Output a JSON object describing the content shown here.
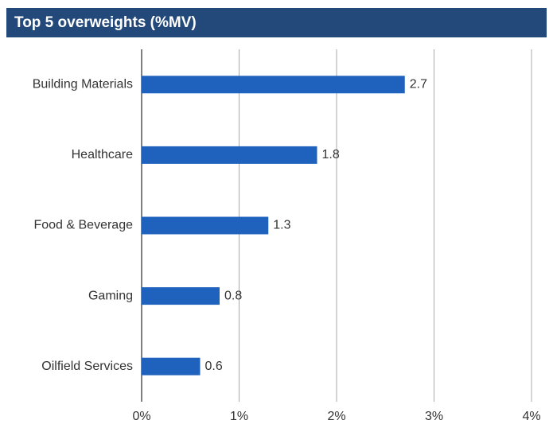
{
  "chart_data": {
    "type": "barh",
    "title": "Top 5 overweights (%MV)",
    "categories": [
      "Building Materials",
      "Healthcare",
      "Food & Beverage",
      "Gaming",
      "Oilfield Services"
    ],
    "values": [
      2.7,
      1.8,
      1.3,
      0.8,
      0.6
    ],
    "color": "#1f62be",
    "xlim": [
      0,
      4
    ],
    "xticks": [
      {
        "value": 0,
        "label": "0%"
      },
      {
        "value": 1,
        "label": "1%"
      },
      {
        "value": 2,
        "label": "2%"
      },
      {
        "value": 3,
        "label": "3%"
      },
      {
        "value": 4,
        "label": "4%"
      }
    ],
    "grid": true
  }
}
